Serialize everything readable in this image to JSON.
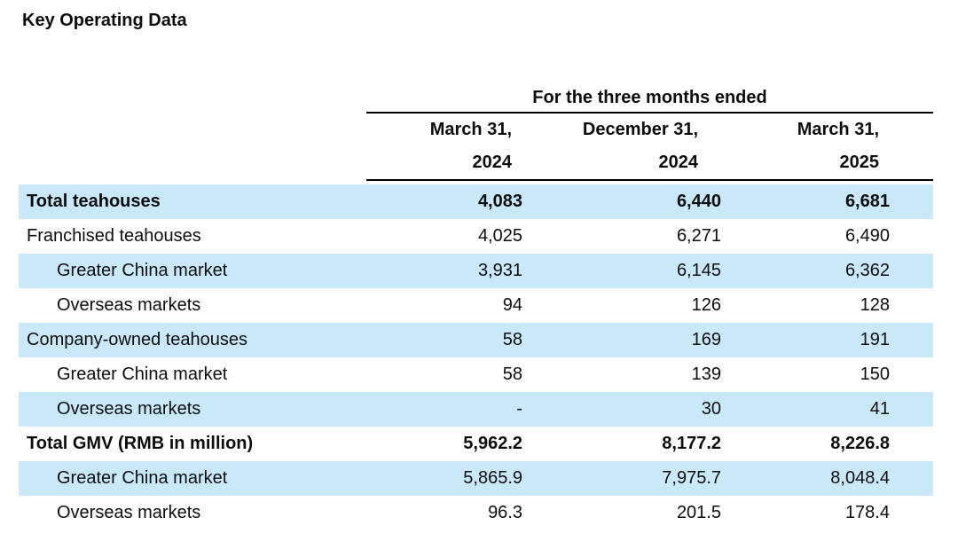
{
  "title": "Key Operating Data",
  "table": {
    "period_header": "For the three months ended",
    "stripe_color": "#c9e8fa",
    "rule_color": "#000000",
    "columns": [
      {
        "line1": "March 31,",
        "line2": "2024"
      },
      {
        "line1": "December 31,",
        "line2": "2024"
      },
      {
        "line1": "March 31,",
        "line2": "2025"
      }
    ],
    "rows": [
      {
        "label": "Total teahouses",
        "values": [
          "4,083",
          "6,440",
          "6,681"
        ],
        "bold": true,
        "indent": false
      },
      {
        "label": "Franchised teahouses",
        "values": [
          "4,025",
          "6,271",
          "6,490"
        ],
        "bold": false,
        "indent": false
      },
      {
        "label": "Greater China market",
        "values": [
          "3,931",
          "6,145",
          "6,362"
        ],
        "bold": false,
        "indent": true
      },
      {
        "label": "Overseas markets",
        "values": [
          "94",
          "126",
          "128"
        ],
        "bold": false,
        "indent": true
      },
      {
        "label": "Company-owned teahouses",
        "values": [
          "58",
          "169",
          "191"
        ],
        "bold": false,
        "indent": false
      },
      {
        "label": "Greater China market",
        "values": [
          "58",
          "139",
          "150"
        ],
        "bold": false,
        "indent": true
      },
      {
        "label": "Overseas markets",
        "values": [
          "-",
          "30",
          "41"
        ],
        "bold": false,
        "indent": true
      },
      {
        "label": "Total GMV (RMB in million)",
        "values": [
          "5,962.2",
          "8,177.2",
          "8,226.8"
        ],
        "bold": true,
        "indent": false
      },
      {
        "label": "Greater China market",
        "values": [
          "5,865.9",
          "7,975.7",
          "8,048.4"
        ],
        "bold": false,
        "indent": true
      },
      {
        "label": "Overseas markets",
        "values": [
          "96.3",
          "201.5",
          "178.4"
        ],
        "bold": false,
        "indent": true
      }
    ]
  }
}
